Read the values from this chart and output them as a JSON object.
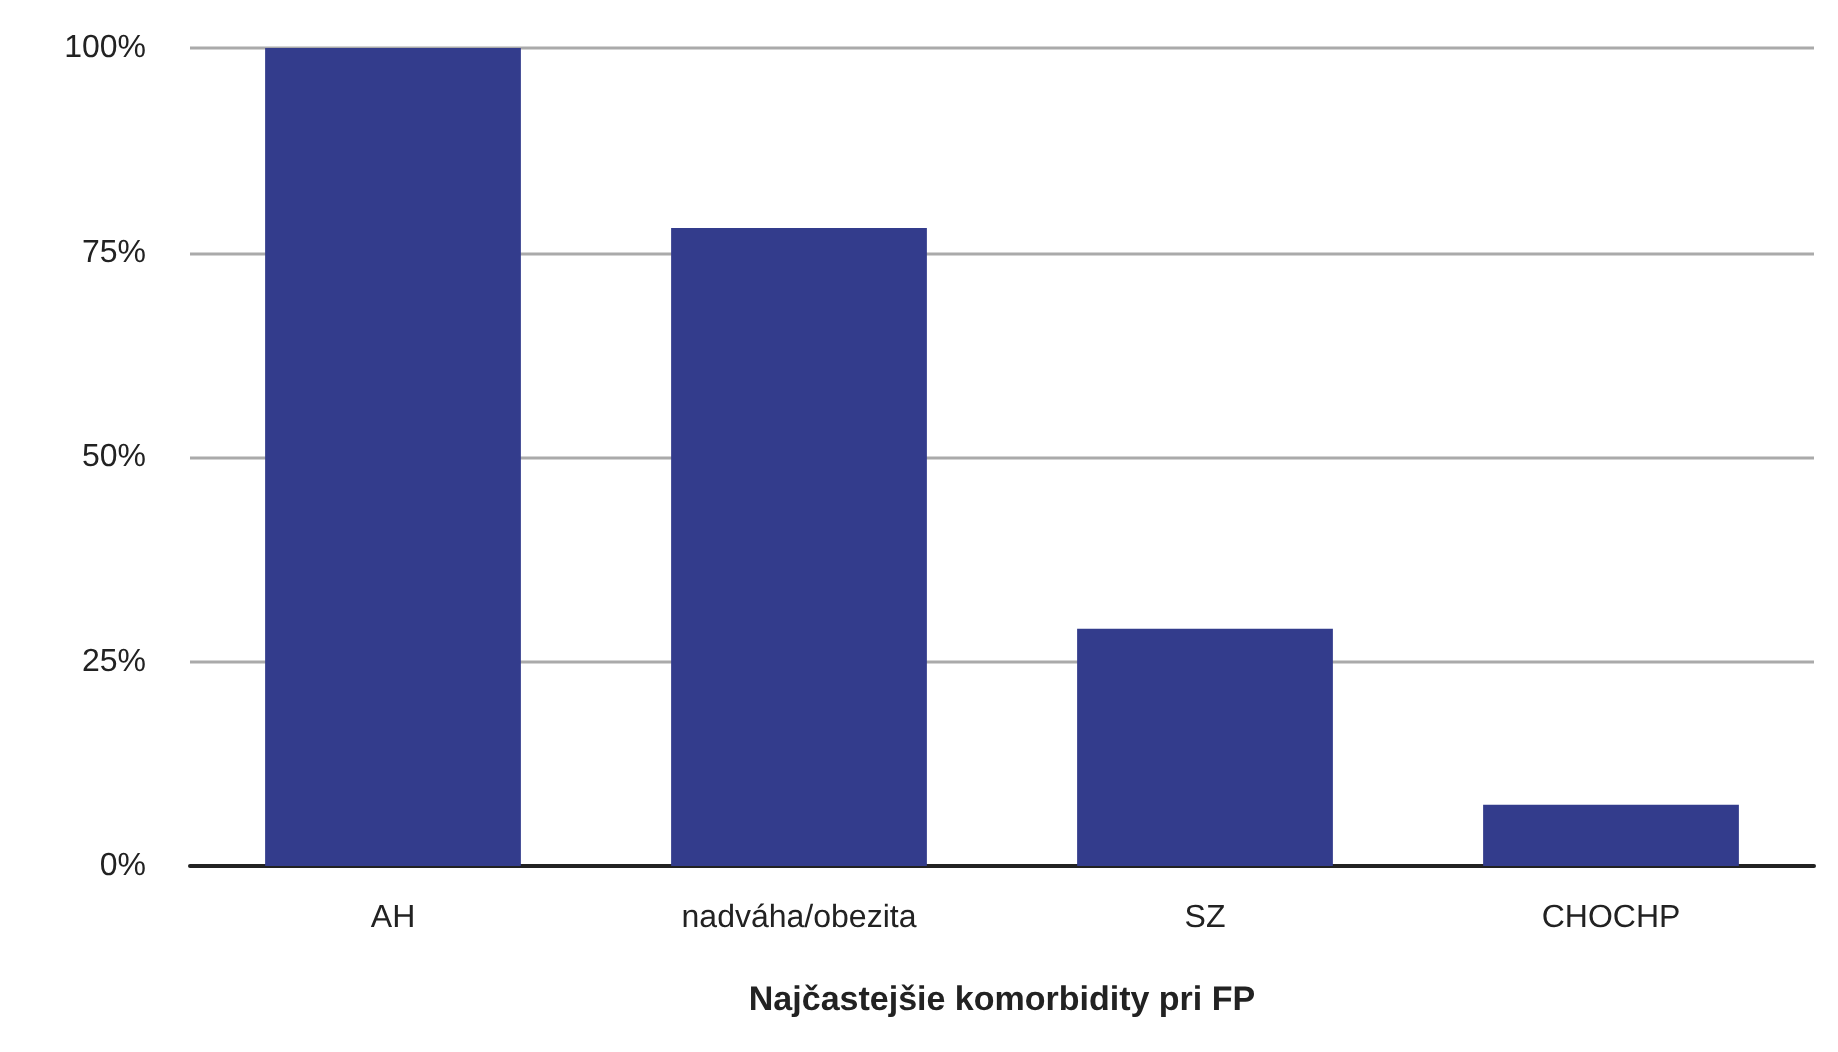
{
  "chart_data": {
    "type": "bar",
    "xlabel": "Najčastejšie komorbidity pri FP",
    "categories": [
      "AH",
      "nadváha/obezita",
      "SZ",
      "CHOCHP"
    ],
    "values": [
      100,
      78,
      29,
      7.5
    ],
    "color": "#333c8c",
    "ylim": [
      0,
      100
    ],
    "yticks": [
      {
        "value": 0,
        "label": "0%"
      },
      {
        "value": 25,
        "label": "25%"
      },
      {
        "value": 50,
        "label": "50%"
      },
      {
        "value": 75,
        "label": "75%"
      },
      {
        "value": 100,
        "label": "100%"
      }
    ],
    "grid": "y"
  }
}
